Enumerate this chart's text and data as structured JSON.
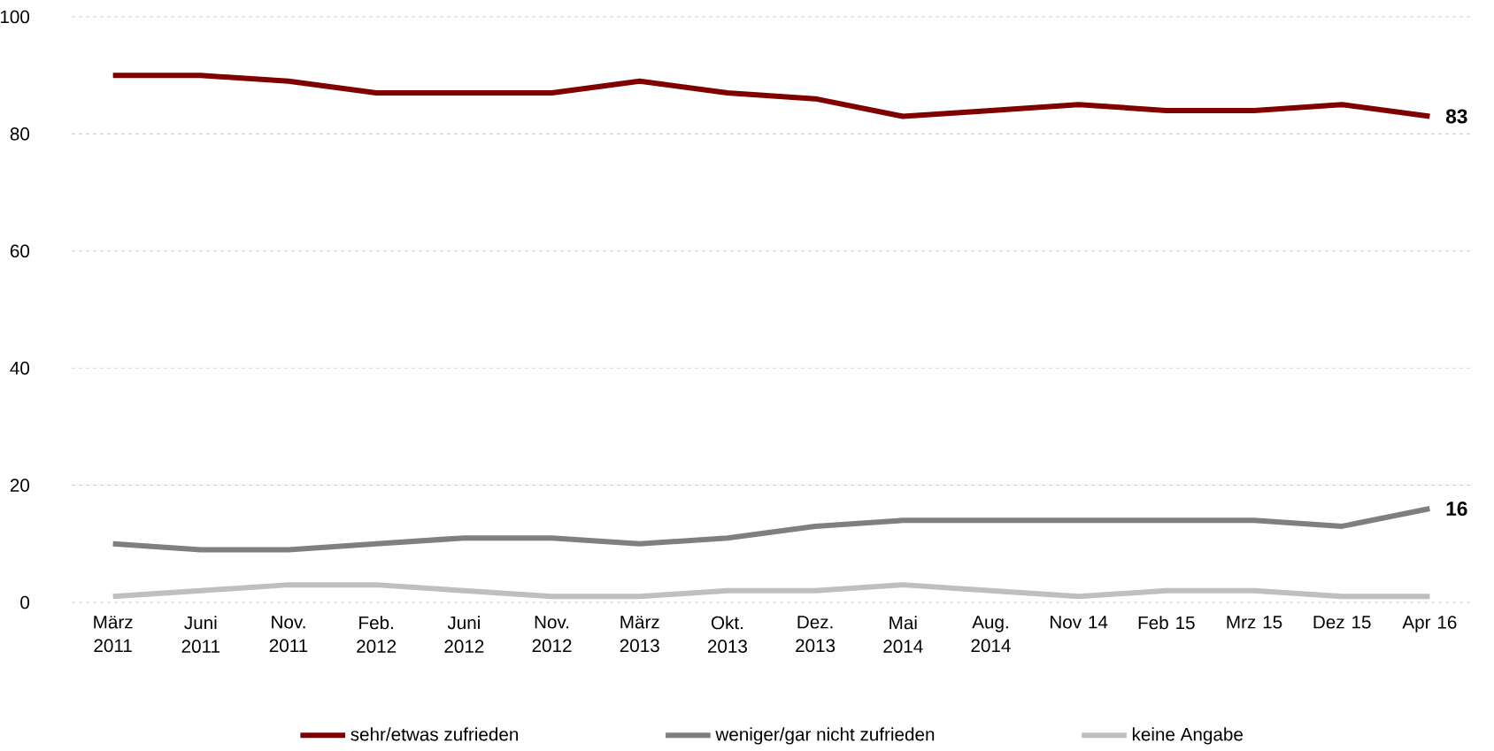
{
  "chart_data": {
    "type": "line",
    "categories": [
      "März 2011",
      "Juni 2011",
      "Nov. 2011",
      "Feb. 2012",
      "Juni 2012",
      "Nov. 2012",
      "März 2013",
      "Okt. 2013",
      "Dez. 2013",
      "Mai 2014",
      "Aug. 2014",
      "Nov 14",
      "Feb 15",
      "Mrz 15",
      "Dez 15",
      "Apr 16"
    ],
    "series": [
      {
        "name": "sehr/etwas zufrieden",
        "color": "#7f0000",
        "values": [
          90,
          90,
          89,
          87,
          87,
          87,
          89,
          87,
          86,
          83,
          84,
          85,
          84,
          84,
          85,
          83
        ],
        "value_labels": [
          null,
          null,
          null,
          null,
          null,
          null,
          null,
          null,
          null,
          null,
          null,
          null,
          null,
          null,
          null,
          "83"
        ]
      },
      {
        "name": "weniger/gar nicht zufrieden",
        "color": "#7f7f7f",
        "values": [
          10,
          9,
          9,
          10,
          11,
          11,
          10,
          11,
          13,
          14,
          14,
          14,
          14,
          14,
          13,
          16
        ],
        "value_labels": [
          null,
          null,
          null,
          null,
          null,
          null,
          null,
          null,
          null,
          null,
          null,
          null,
          null,
          null,
          null,
          "16"
        ]
      },
      {
        "name": "keine Angabe",
        "color": "#bfbfbf",
        "values": [
          1,
          2,
          3,
          3,
          2,
          1,
          1,
          2,
          2,
          3,
          2,
          1,
          2,
          2,
          1,
          1
        ],
        "value_labels": [
          null,
          null,
          null,
          null,
          null,
          null,
          null,
          null,
          null,
          null,
          null,
          null,
          null,
          null,
          null,
          null
        ]
      }
    ],
    "ylim": [
      0,
      100
    ],
    "yticks": [
      0,
      20,
      40,
      60,
      80,
      100
    ],
    "grid": "y",
    "legend": "bottom",
    "marker": "none",
    "line_style": "solid"
  }
}
